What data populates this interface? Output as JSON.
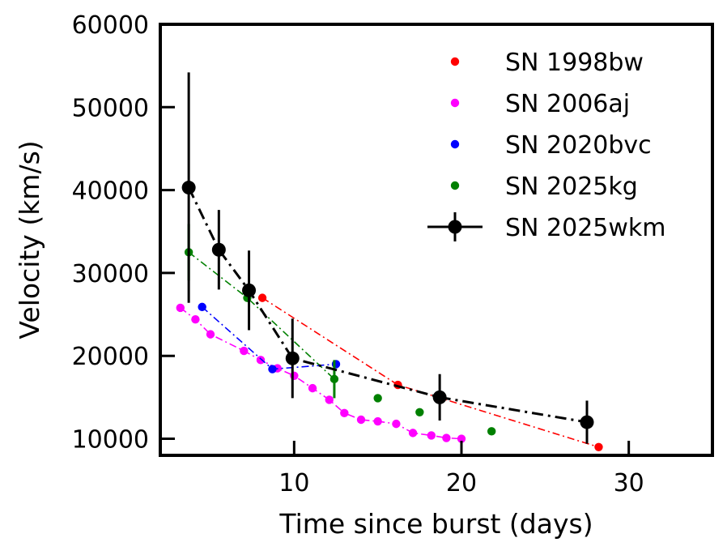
{
  "chart_data": {
    "type": "scatter",
    "title": "",
    "xlabel": "Time since burst (days)",
    "ylabel": "Velocity (km/s)",
    "xlim": [
      2,
      35
    ],
    "ylim": [
      8000,
      60000
    ],
    "xticks": [
      10,
      20,
      30
    ],
    "yticks": [
      10000,
      20000,
      30000,
      40000,
      50000,
      60000
    ],
    "xtick_labels": [
      "10",
      "20",
      "30"
    ],
    "ytick_labels": [
      "10000",
      "20000",
      "30000",
      "40000",
      "50000",
      "60000"
    ],
    "legend_position": "top-right",
    "series": [
      {
        "name": "SN 1998bw",
        "color": "#ff0000",
        "line": "dashdot",
        "errorbars": false,
        "x": [
          8.1,
          16.2,
          28.2
        ],
        "y": [
          27000,
          16500,
          9000
        ]
      },
      {
        "name": "SN 2006aj",
        "color": "#ff00ff",
        "line": "dashdot",
        "errorbars": false,
        "x": [
          3.2,
          4.1,
          5.0,
          7.0,
          8.0,
          9.0,
          10.0,
          11.1,
          12.1,
          13.0,
          14.0,
          15.0,
          16.1,
          17.1,
          18.2,
          19.1,
          20.0
        ],
        "y": [
          25800,
          24400,
          22600,
          20600,
          19500,
          18500,
          17600,
          16100,
          14700,
          13100,
          12300,
          12100,
          11800,
          10700,
          10400,
          10100,
          10000
        ]
      },
      {
        "name": "SN 2020bvc",
        "color": "#0000ff",
        "line": "dashdot",
        "errorbars": false,
        "x": [
          4.5,
          8.7,
          12.5
        ],
        "y": [
          25900,
          18400,
          19000
        ]
      },
      {
        "name": "SN 2025kg",
        "color": "#008000",
        "line": "dashdot",
        "errorbars": true,
        "x": [
          3.7,
          7.2,
          12.4,
          15.0,
          17.5,
          21.8
        ],
        "y": [
          32500,
          27000,
          17200,
          14900,
          13200,
          10900
        ],
        "yerr": [
          3400,
          0,
          2300,
          0,
          0,
          0
        ],
        "line_points": 3
      },
      {
        "name": "SN 2025wkm",
        "color": "#000000",
        "line": "dashdot",
        "errorbars": true,
        "x": [
          3.7,
          5.5,
          7.3,
          9.9,
          18.7,
          27.5
        ],
        "y": [
          40300,
          32800,
          27900,
          19700,
          15000,
          12000
        ],
        "yerr": [
          13900,
          4800,
          4800,
          4800,
          2800,
          2600
        ]
      }
    ]
  }
}
